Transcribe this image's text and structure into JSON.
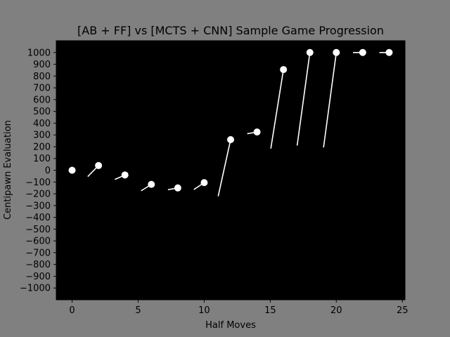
{
  "chart_data": {
    "type": "line",
    "title": "[AB + FF] vs [MCTS + CNN] Sample Game Progression",
    "xlabel": "Half Moves",
    "ylabel": "Centipawn Evaluation",
    "xlim": [
      -1.2,
      25.2
    ],
    "ylim": [
      -1100,
      1100
    ],
    "xticks": [
      0,
      5,
      10,
      15,
      20,
      25
    ],
    "xtick_labels": [
      "0",
      "5",
      "10",
      "15",
      "20",
      "25"
    ],
    "yticks": [
      -1000,
      -900,
      -800,
      -700,
      -600,
      -500,
      -400,
      -300,
      -200,
      -100,
      0,
      100,
      200,
      300,
      400,
      500,
      600,
      700,
      800,
      900,
      1000
    ],
    "ytick_labels": [
      "−1000",
      "−900",
      "−800",
      "−700",
      "−600",
      "−500",
      "−400",
      "−300",
      "−200",
      "−100",
      "0",
      "100",
      "200",
      "300",
      "400",
      "500",
      "600",
      "700",
      "800",
      "900",
      "1000"
    ],
    "grid": false,
    "x": [
      0,
      1,
      2,
      3,
      4,
      5,
      6,
      7,
      8,
      9,
      10,
      11,
      12,
      13,
      14,
      15,
      16,
      17,
      18,
      19,
      20,
      21,
      22,
      23,
      24
    ],
    "y": [
      0,
      -75,
      40,
      -90,
      -40,
      -190,
      -120,
      -170,
      -150,
      -180,
      -105,
      -250,
      260,
      305,
      325,
      155,
      855,
      180,
      1000,
      165,
      1000,
      1000,
      1000,
      1000,
      1000
    ],
    "point_colors": [
      "#ffffff",
      "#000000",
      "#ffffff",
      "#000000",
      "#ffffff",
      "#000000",
      "#ffffff",
      "#000000",
      "#ffffff",
      "#000000",
      "#ffffff",
      "#000000",
      "#ffffff",
      "#000000",
      "#ffffff",
      "#000000",
      "#ffffff",
      "#000000",
      "#ffffff",
      "#000000",
      "#ffffff",
      "#000000",
      "#ffffff",
      "#000000",
      "#ffffff"
    ],
    "colors": {
      "figure_background": "#808080",
      "axes_background": "#000000",
      "white_move": "#ffffff",
      "black_move": "#000000"
    }
  }
}
